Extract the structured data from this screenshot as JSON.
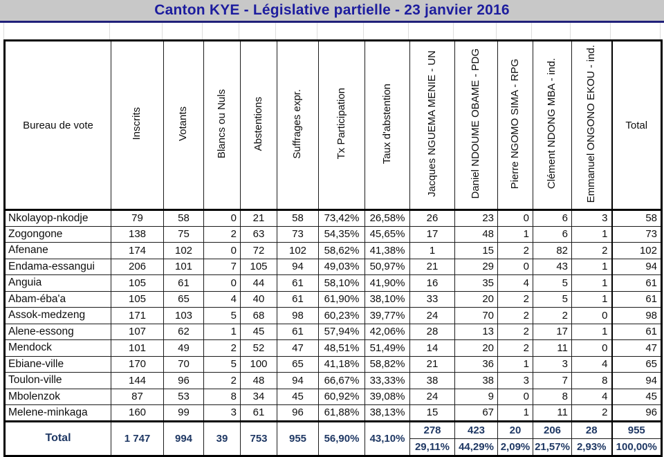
{
  "title": "Canton KYE - Législative partielle - 23 janvier 2016",
  "colors": {
    "title_text": "#1d1d9e",
    "title_bar_bg": "#c8c8c8",
    "banner_rule": "#20207a",
    "total_text": "#1f3864",
    "border": "#000000"
  },
  "table": {
    "columns": [
      {
        "key": "bureau",
        "label": "Bureau de vote",
        "rotated": false,
        "align": "left"
      },
      {
        "key": "inscrits",
        "label": "Inscrits",
        "rotated": true,
        "align": "center"
      },
      {
        "key": "votants",
        "label": "Votants",
        "rotated": true,
        "align": "center"
      },
      {
        "key": "blancs",
        "label": "Blancs ou Nuls",
        "rotated": true,
        "align": "right"
      },
      {
        "key": "abstentions",
        "label": "Abstentions",
        "rotated": true,
        "align": "center"
      },
      {
        "key": "suffrages",
        "label": "Suffrages expr.",
        "rotated": true,
        "align": "center"
      },
      {
        "key": "tx-participation",
        "label": "Tx Participation",
        "rotated": true,
        "align": "center"
      },
      {
        "key": "taux-abstention",
        "label": "Taux d'abstention",
        "rotated": true,
        "align": "center"
      },
      {
        "key": "nguema-menie",
        "label": "Jacques NGUEMA MENIE - UN",
        "rotated": true,
        "align": "center"
      },
      {
        "key": "ndoume-obame",
        "label": "Daniel NDOUME OBAME - PDG",
        "rotated": true,
        "align": "right"
      },
      {
        "key": "ngomo-sima",
        "label": "Pierre NGOMO SIMA - RPG",
        "rotated": true,
        "align": "right"
      },
      {
        "key": "ndong-mba",
        "label": "Clément NDONG MBA - ind.",
        "rotated": true,
        "align": "right"
      },
      {
        "key": "ongono-ekou",
        "label": "Emmanuel ONGONO EKOU - ind.",
        "rotated": true,
        "align": "right"
      },
      {
        "key": "total",
        "label": "Total",
        "rotated": false,
        "align": "right"
      }
    ],
    "rows": [
      {
        "bureau": "Nkolayop-nkodje",
        "values": [
          "79",
          "58",
          "0",
          "21",
          "58",
          "73,42%",
          "26,58%",
          "26",
          "23",
          "0",
          "6",
          "3",
          "58"
        ]
      },
      {
        "bureau": "Zogongone",
        "values": [
          "138",
          "75",
          "2",
          "63",
          "73",
          "54,35%",
          "45,65%",
          "17",
          "48",
          "1",
          "6",
          "1",
          "73"
        ]
      },
      {
        "bureau": "Afenane",
        "values": [
          "174",
          "102",
          "0",
          "72",
          "102",
          "58,62%",
          "41,38%",
          "1",
          "15",
          "2",
          "82",
          "2",
          "102"
        ]
      },
      {
        "bureau": "Endama-essangui",
        "values": [
          "206",
          "101",
          "7",
          "105",
          "94",
          "49,03%",
          "50,97%",
          "21",
          "29",
          "0",
          "43",
          "1",
          "94"
        ]
      },
      {
        "bureau": "Anguia",
        "values": [
          "105",
          "61",
          "0",
          "44",
          "61",
          "58,10%",
          "41,90%",
          "16",
          "35",
          "4",
          "5",
          "1",
          "61"
        ]
      },
      {
        "bureau": "Abam-éba'a",
        "values": [
          "105",
          "65",
          "4",
          "40",
          "61",
          "61,90%",
          "38,10%",
          "33",
          "20",
          "2",
          "5",
          "1",
          "61"
        ]
      },
      {
        "bureau": "Assok-medzeng",
        "values": [
          "171",
          "103",
          "5",
          "68",
          "98",
          "60,23%",
          "39,77%",
          "24",
          "70",
          "2",
          "2",
          "0",
          "98"
        ]
      },
      {
        "bureau": "Alene-essong",
        "values": [
          "107",
          "62",
          "1",
          "45",
          "61",
          "57,94%",
          "42,06%",
          "28",
          "13",
          "2",
          "17",
          "1",
          "61"
        ]
      },
      {
        "bureau": "Mendock",
        "values": [
          "101",
          "49",
          "2",
          "52",
          "47",
          "48,51%",
          "51,49%",
          "14",
          "20",
          "2",
          "11",
          "0",
          "47"
        ]
      },
      {
        "bureau": "Ebiane-ville",
        "values": [
          "170",
          "70",
          "5",
          "100",
          "65",
          "41,18%",
          "58,82%",
          "21",
          "36",
          "1",
          "3",
          "4",
          "65"
        ]
      },
      {
        "bureau": "Toulon-ville",
        "values": [
          "144",
          "96",
          "2",
          "48",
          "94",
          "66,67%",
          "33,33%",
          "38",
          "38",
          "3",
          "7",
          "8",
          "94"
        ]
      },
      {
        "bureau": "Mbolenzok",
        "values": [
          "87",
          "53",
          "8",
          "34",
          "45",
          "60,92%",
          "39,08%",
          "24",
          "9",
          "0",
          "8",
          "4",
          "45"
        ]
      },
      {
        "bureau": "Melene-minkaga",
        "values": [
          "160",
          "99",
          "3",
          "61",
          "96",
          "61,88%",
          "38,13%",
          "15",
          "67",
          "1",
          "11",
          "2",
          "96"
        ]
      }
    ],
    "total": {
      "label": "Total",
      "summary": [
        "1 747",
        "994",
        "39",
        "753",
        "955",
        "56,90%",
        "43,10%"
      ],
      "candidate_counts": [
        "278",
        "423",
        "20",
        "206",
        "28",
        "955"
      ],
      "candidate_pcts": [
        "29,11%",
        "44,29%",
        "2,09%",
        "21,57%",
        "2,93%",
        "100,00%"
      ]
    }
  }
}
